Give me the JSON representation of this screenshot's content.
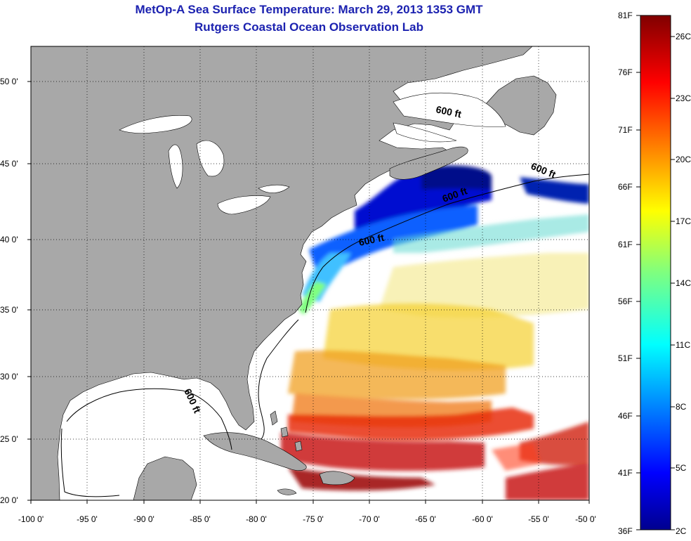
{
  "title": "MetOp-A Sea Surface Temperature:  March 29, 2013 1353 GMT",
  "subtitle": "Rutgers Coastal Ocean Observation Lab",
  "lon_ticks": [
    "-100 0'",
    "-95 0'",
    "-90 0'",
    "-85 0'",
    "-80 0'",
    "-75 0'",
    "-70 0'",
    "-65 0'",
    "-60 0'",
    "-55 0'",
    "-50 0'"
  ],
  "lat_ticks": [
    "50 0'",
    "45 0'",
    "40 0'",
    "35 0'",
    "30 0'",
    "25 0'",
    "20 0'"
  ],
  "contour_label": "600 ft",
  "colorbar": {
    "fahrenheit": [
      "81F",
      "76F",
      "71F",
      "66F",
      "61F",
      "56F",
      "51F",
      "46F",
      "41F",
      "36F"
    ],
    "celsius": [
      "26C",
      "23C",
      "20C",
      "17C",
      "14C",
      "11C",
      "8C",
      "5C",
      "2C"
    ]
  },
  "colors": {
    "land": "#a8a8a8",
    "ocean": "#ffffff",
    "title": "#1c22b0"
  }
}
